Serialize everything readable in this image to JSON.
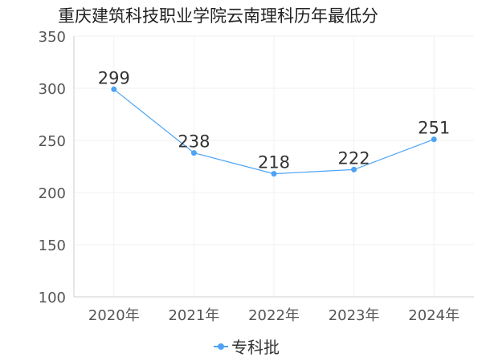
{
  "chart_data": {
    "type": "line",
    "title": "重庆建筑科技职业学院云南理科历年最低分",
    "categories": [
      "2020年",
      "2021年",
      "2022年",
      "2023年",
      "2024年"
    ],
    "series": [
      {
        "name": "专科批",
        "values": [
          299,
          238,
          218,
          222,
          251
        ],
        "color": "#4da3f5"
      }
    ],
    "data_labels": [
      "299",
      "238",
      "218",
      "222",
      "251"
    ],
    "y_ticks": [
      100,
      150,
      200,
      250,
      300,
      350
    ],
    "y_tick_labels": [
      "100",
      "150",
      "200",
      "250",
      "300",
      "350"
    ],
    "ylim": [
      100,
      350
    ],
    "xlabel": "",
    "ylabel": "",
    "grid": true,
    "legend_position": "bottom-center"
  }
}
